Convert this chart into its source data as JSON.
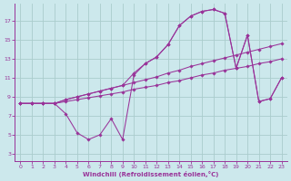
{
  "xlabel": "Windchill (Refroidissement éolien,°C)",
  "background_color": "#cce8ec",
  "grid_color": "#aacccc",
  "line_color": "#993399",
  "xlim": [
    -0.5,
    23.5
  ],
  "ylim": [
    2.2,
    18.8
  ],
  "xticks": [
    0,
    1,
    2,
    3,
    4,
    5,
    6,
    7,
    8,
    9,
    10,
    11,
    12,
    13,
    14,
    15,
    16,
    17,
    18,
    19,
    20,
    21,
    22,
    23
  ],
  "yticks": [
    3,
    5,
    7,
    9,
    11,
    13,
    15,
    17
  ],
  "series": [
    {
      "x": [
        0,
        1,
        2,
        3,
        4,
        5,
        6,
        7,
        8,
        9,
        10,
        11,
        12,
        13,
        14,
        15,
        16,
        17,
        18,
        19,
        20,
        21,
        22,
        23
      ],
      "y": [
        8.3,
        8.3,
        8.3,
        8.3,
        8.5,
        8.7,
        8.9,
        9.1,
        9.3,
        9.5,
        9.8,
        10.0,
        10.2,
        10.5,
        10.7,
        11.0,
        11.3,
        11.5,
        11.8,
        12.0,
        12.2,
        12.5,
        12.7,
        13.0
      ]
    },
    {
      "x": [
        0,
        1,
        2,
        3,
        4,
        5,
        6,
        7,
        8,
        9,
        10,
        11,
        12,
        13,
        14,
        15,
        16,
        17,
        18,
        19,
        20,
        21,
        22,
        23
      ],
      "y": [
        8.3,
        8.3,
        8.3,
        8.3,
        8.7,
        9.0,
        9.3,
        9.6,
        9.9,
        10.2,
        10.5,
        10.8,
        11.1,
        11.5,
        11.8,
        12.2,
        12.5,
        12.8,
        13.1,
        13.4,
        13.7,
        14.0,
        14.3,
        14.6
      ]
    },
    {
      "x": [
        0,
        1,
        2,
        3,
        4,
        5,
        6,
        7,
        8,
        9,
        10,
        11,
        12,
        13,
        14,
        15,
        16,
        17,
        18,
        19,
        20,
        21,
        22,
        23
      ],
      "y": [
        8.3,
        8.3,
        8.3,
        8.3,
        8.7,
        9.0,
        9.3,
        9.6,
        9.9,
        10.2,
        11.5,
        12.5,
        13.2,
        14.5,
        16.5,
        17.5,
        18.0,
        18.2,
        17.8,
        12.0,
        15.5,
        8.5,
        8.8,
        11.0
      ]
    },
    {
      "x": [
        0,
        1,
        2,
        3,
        4,
        5,
        6,
        7,
        8,
        9,
        10,
        11,
        12,
        13,
        14,
        15,
        16,
        17,
        18,
        19,
        20,
        21,
        22,
        23
      ],
      "y": [
        8.3,
        8.3,
        8.3,
        8.3,
        7.2,
        5.2,
        4.5,
        5.0,
        6.7,
        4.5,
        11.3,
        12.5,
        13.2,
        14.5,
        16.5,
        17.5,
        18.0,
        18.2,
        17.8,
        12.0,
        15.5,
        8.5,
        8.8,
        11.0
      ]
    }
  ],
  "marker": "D",
  "markersize": 1.8,
  "linewidth": 0.75
}
